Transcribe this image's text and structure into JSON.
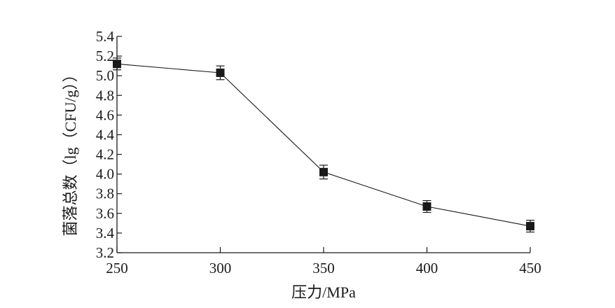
{
  "chart_data": {
    "type": "line",
    "title": "",
    "xlabel": "压力/MPa",
    "ylabel": "菌落总数（lg（CFU/g））",
    "x": [
      250,
      300,
      350,
      400,
      450
    ],
    "xlim": [
      250,
      450
    ],
    "xticks": [
      "250",
      "300",
      "350",
      "400",
      "450"
    ],
    "ylim": [
      3.2,
      5.4
    ],
    "yticks": [
      "3.2",
      "3.4",
      "3.6",
      "3.8",
      "4.0",
      "4.2",
      "4.4",
      "4.6",
      "4.8",
      "5.0",
      "5.2",
      "5.4"
    ],
    "series": [
      {
        "values": [
          5.12,
          5.03,
          4.02,
          3.67,
          3.47
        ],
        "errors": [
          0.06,
          0.07,
          0.07,
          0.06,
          0.06
        ],
        "marker": "square",
        "color": "#1a1a1a"
      }
    ],
    "grid": false,
    "legend": "none"
  }
}
